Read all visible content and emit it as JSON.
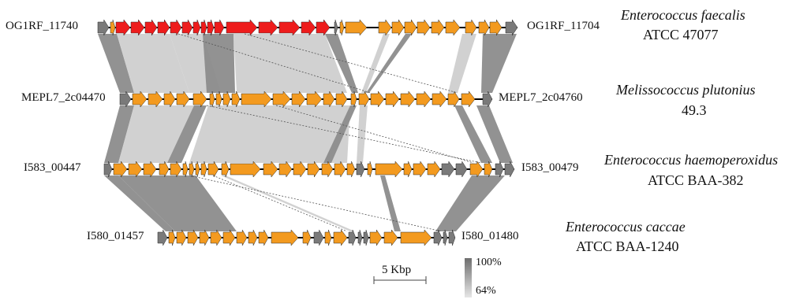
{
  "colors": {
    "orange": "#f39a1f",
    "red": "#ee1c1c",
    "grey": "#7a7a7a",
    "backbone": "#000000",
    "link_light": "#cfcfcf",
    "link_dark": "#8c8c8c"
  },
  "tracks": [
    {
      "left_label": "OG1RF_11740",
      "right_label": "OG1RF_11704",
      "species": "Enterococcus faecalis",
      "strain": "ATCC 47077"
    },
    {
      "left_label": "MEPL7_2c04470",
      "right_label": "MEPL7_2c04760",
      "species": "Melissococcus plutonius",
      "strain": "49.3"
    },
    {
      "left_label": "I583_00447",
      "right_label": "I583_00479",
      "species": "Enterococcus haemoperoxidus",
      "strain": "ATCC BAA-382"
    },
    {
      "left_label": "I580_01457",
      "right_label": "I580_01480",
      "species": "Enterococcus caccae",
      "strain": "ATCC BAA-1240"
    }
  ],
  "scale_bar": {
    "label": "5 Kbp"
  },
  "identity_legend": {
    "max": "100%",
    "min": "64%"
  }
}
